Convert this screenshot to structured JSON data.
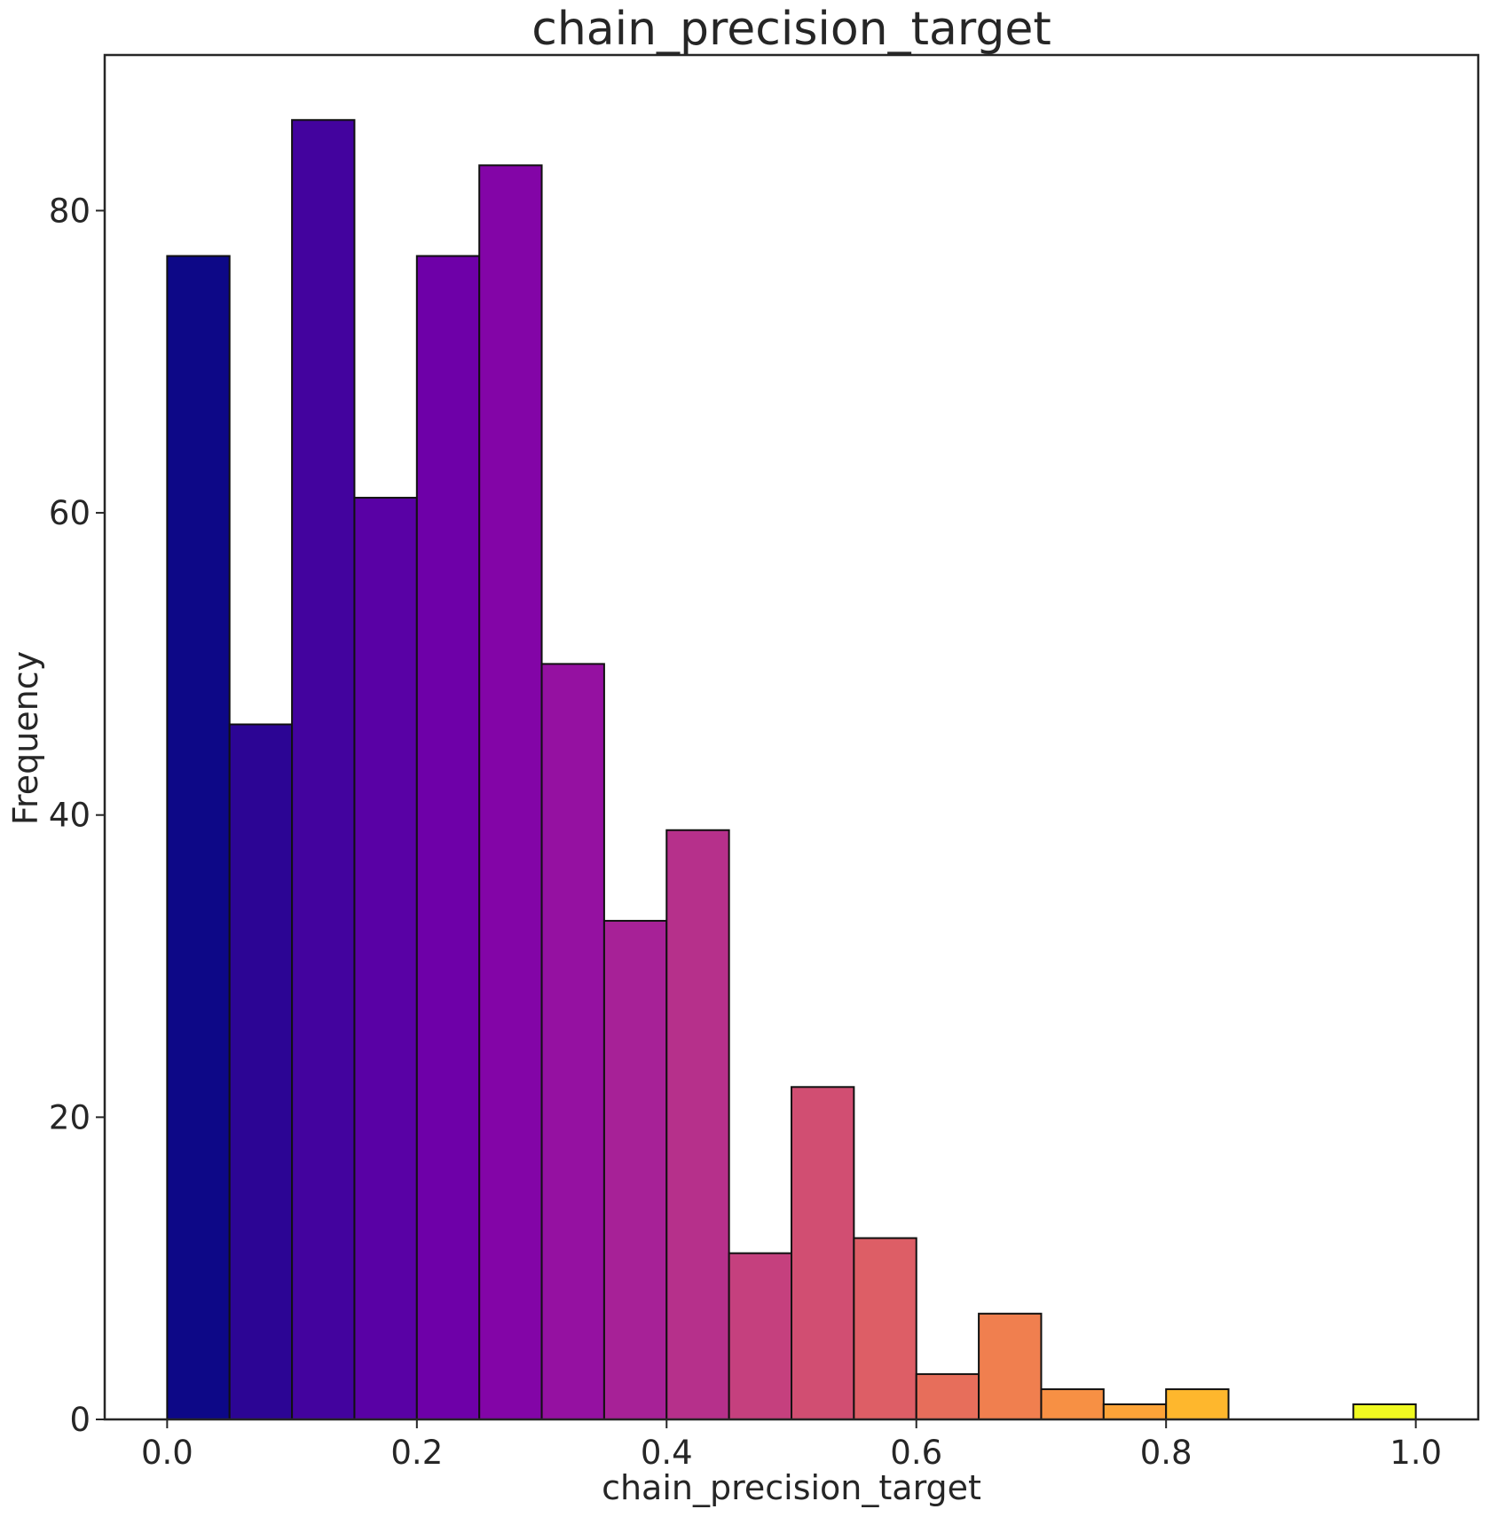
{
  "chart_data": {
    "type": "histogram",
    "title": "chain_precision_target",
    "xlabel": "chain_precision_target",
    "ylabel": "Frequency",
    "bin_edges": [
      0.0,
      0.05,
      0.1,
      0.15,
      0.2,
      0.25,
      0.3,
      0.35,
      0.4,
      0.45,
      0.5,
      0.55,
      0.6,
      0.65,
      0.7,
      0.75,
      0.8,
      0.85,
      0.9,
      0.95,
      1.0
    ],
    "values": [
      77,
      46,
      86,
      61,
      77,
      83,
      50,
      33,
      39,
      11,
      22,
      12,
      3,
      7,
      2,
      1,
      2,
      0,
      0,
      1
    ],
    "colors": [
      "#0d0887",
      "#2c0594",
      "#43039e",
      "#5901a5",
      "#6e00a8",
      "#8305a7",
      "#9511a1",
      "#a72197",
      "#b6308b",
      "#c5407e",
      "#d14e72",
      "#dd5e66",
      "#e76e5b",
      "#f07f4f",
      "#f79044",
      "#fca338",
      "#feb72d",
      "#fccd25",
      "#f7e225",
      "#f0f921"
    ],
    "xlim": [
      -0.05,
      1.05
    ],
    "ylim": [
      0,
      90.3
    ],
    "xticks": [
      0.0,
      0.2,
      0.4,
      0.6,
      0.8,
      1.0
    ],
    "xtick_labels": [
      "0.0",
      "0.2",
      "0.4",
      "0.6",
      "0.8",
      "1.0"
    ],
    "yticks": [
      0,
      20,
      40,
      60,
      80
    ],
    "ytick_labels": [
      "0",
      "20",
      "40",
      "60",
      "80"
    ],
    "grid": false
  }
}
